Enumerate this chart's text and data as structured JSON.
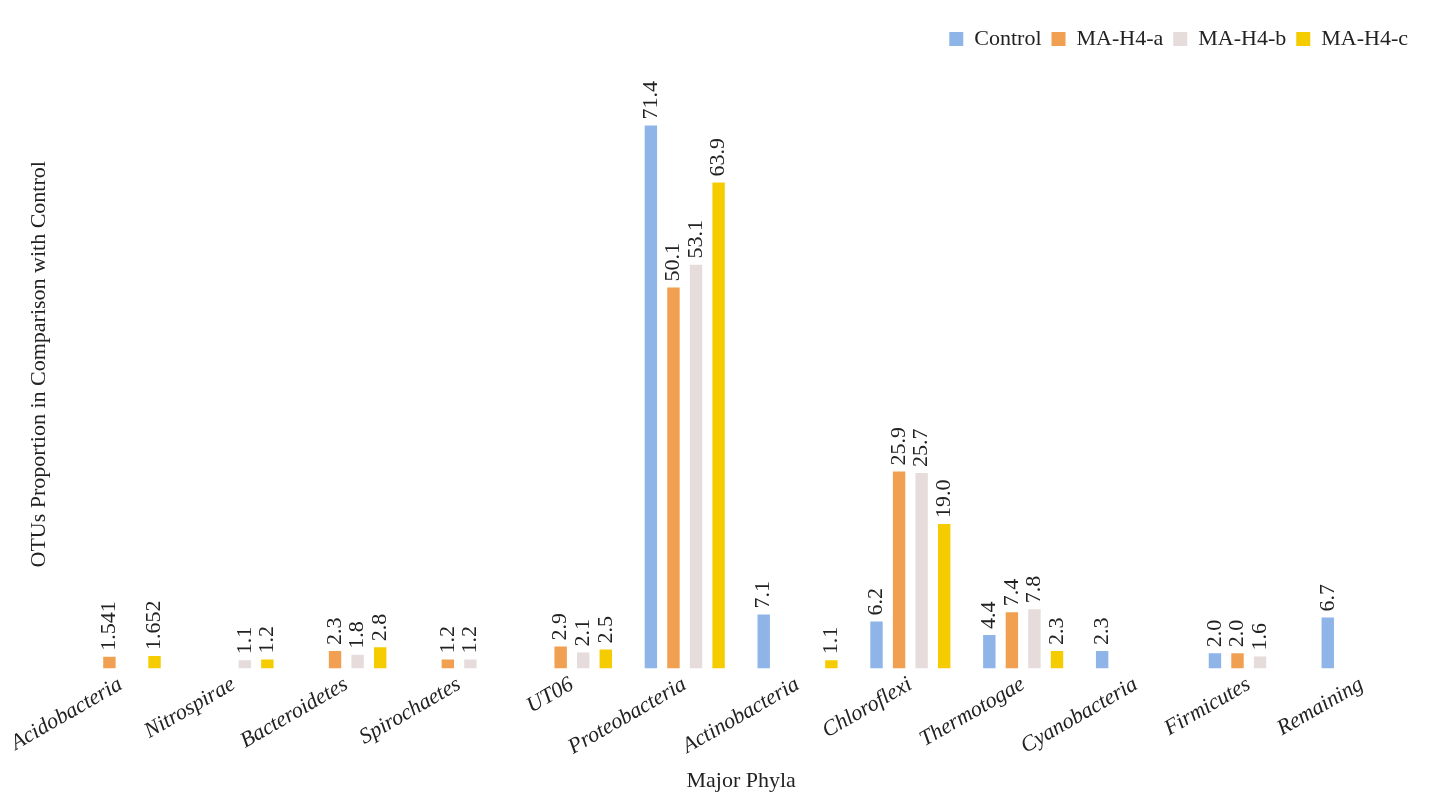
{
  "chart_data": {
    "type": "bar",
    "xlabel": "Major Phyla",
    "ylabel": "OTUs Proportion in Comparison with Control",
    "categories": [
      "Acidobacteria",
      "Nitrospirae",
      "Bacteroidetes",
      "Spirochaetes",
      "UT06",
      "Proteobacteria",
      "Actinobacteria",
      "Chloroflexi",
      "Thermotogae",
      "Cyanobacteria",
      "Firmicutes",
      "Remaining"
    ],
    "series": [
      {
        "name": "Control",
        "color": "#8fb4e8",
        "values": [
          null,
          null,
          null,
          null,
          null,
          71.4,
          7.1,
          6.2,
          4.4,
          2.3,
          2.0,
          6.7
        ],
        "value_labels": [
          null,
          null,
          null,
          null,
          null,
          "71.4",
          "7.1",
          "6.2",
          "4.4",
          "2.3",
          "2.0",
          "6.7"
        ]
      },
      {
        "name": "MA-H4-a",
        "color": "#f0a050",
        "values": [
          1.541,
          null,
          2.3,
          1.2,
          2.9,
          50.1,
          null,
          25.9,
          7.4,
          null,
          2.0,
          null
        ],
        "value_labels": [
          "1.541",
          null,
          "2.3",
          "1.2",
          "2.9",
          "50.1",
          null,
          "25.9",
          "7.4",
          null,
          "2.0",
          null
        ]
      },
      {
        "name": "MA-H4-b",
        "color": "#e6dcdc",
        "values": [
          null,
          1.1,
          1.8,
          1.2,
          2.1,
          53.1,
          null,
          25.7,
          7.8,
          null,
          1.6,
          null
        ],
        "value_labels": [
          null,
          "1.1",
          "1.8",
          "1.2",
          "2.1",
          "53.1",
          null,
          "25.7",
          "7.8",
          null,
          "1.6",
          null
        ]
      },
      {
        "name": "MA-H4-c",
        "color": "#f5cc00",
        "values": [
          1.652,
          1.2,
          2.8,
          null,
          2.5,
          63.9,
          1.1,
          19.0,
          2.3,
          null,
          null,
          null
        ],
        "value_labels": [
          "1.652",
          "1.2",
          "2.8",
          null,
          "2.5",
          "63.9",
          "1.1",
          "19.0",
          "2.3",
          null,
          null,
          null
        ]
      }
    ],
    "legend": "top right",
    "tick_labels": "x",
    "grid": false
  }
}
